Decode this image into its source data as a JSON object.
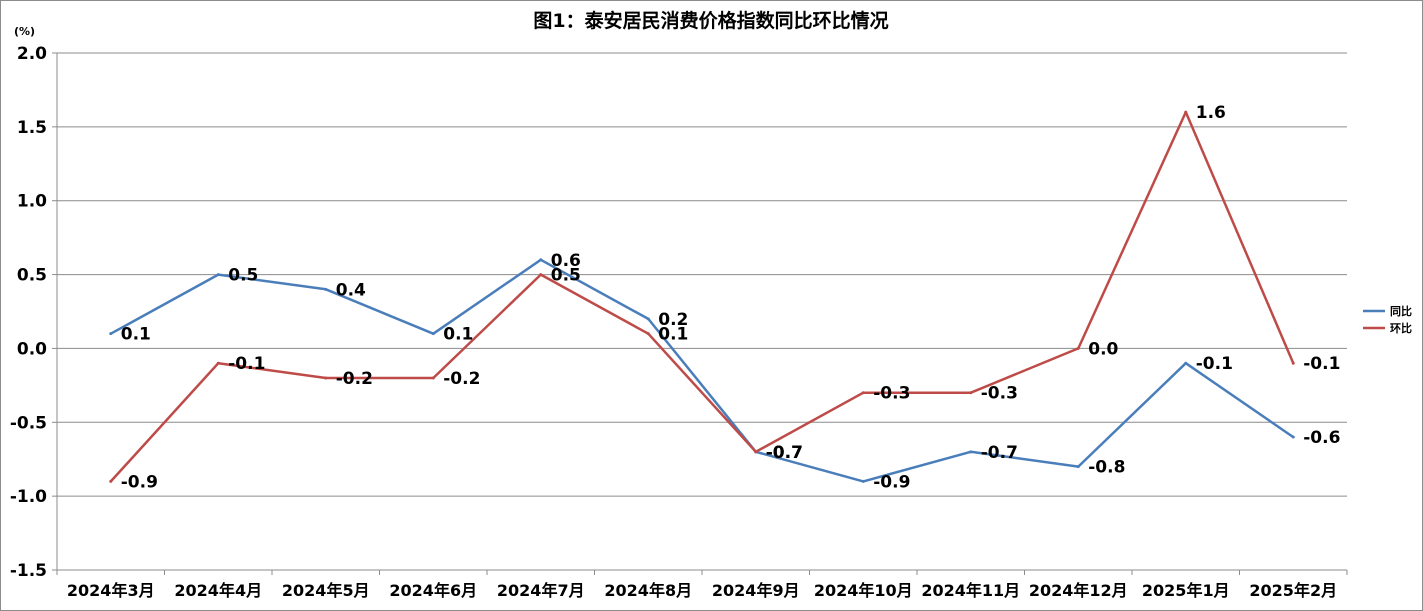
{
  "chart_data": {
    "type": "line",
    "title": "图1：泰安居民消费价格指数同比环比情况",
    "unit_label": "(%)",
    "categories": [
      "2024年3月",
      "2024年4月",
      "2024年5月",
      "2024年6月",
      "2024年7月",
      "2024年8月",
      "2024年9月",
      "2024年10月",
      "2024年11月",
      "2024年12月",
      "2025年1月",
      "2025年2月"
    ],
    "ylim": [
      -1.5,
      2.0
    ],
    "yticks": [
      "2.0",
      "1.5",
      "1.0",
      "0.5",
      "0.0",
      "-0.5",
      "-1.0",
      "-1.5"
    ],
    "grid": true,
    "legend_position": "right",
    "series": [
      {
        "name": "同比",
        "color": "#4a7ebb",
        "values": [
          0.1,
          0.5,
          0.4,
          0.1,
          0.6,
          0.2,
          -0.7,
          -0.9,
          -0.7,
          -0.8,
          -0.1,
          -0.6
        ],
        "labels": [
          "0.1",
          "0.5",
          "0.4",
          "0.1",
          "0.6",
          "0.2",
          "-0.7",
          "-0.9",
          "-0.7",
          "-0.8",
          "-0.1",
          "-0.6"
        ]
      },
      {
        "name": "环比",
        "color": "#be4b48",
        "values": [
          -0.9,
          -0.1,
          -0.2,
          -0.2,
          0.5,
          0.1,
          -0.7,
          -0.3,
          -0.3,
          0.0,
          1.6,
          -0.1
        ],
        "labels": [
          "-0.9",
          "-0.1",
          "-0.2",
          "-0.2",
          "0.5",
          "0.1",
          "-0.7",
          "-0.3",
          "-0.3",
          "0.0",
          "1.6",
          "-0.1"
        ]
      }
    ]
  }
}
